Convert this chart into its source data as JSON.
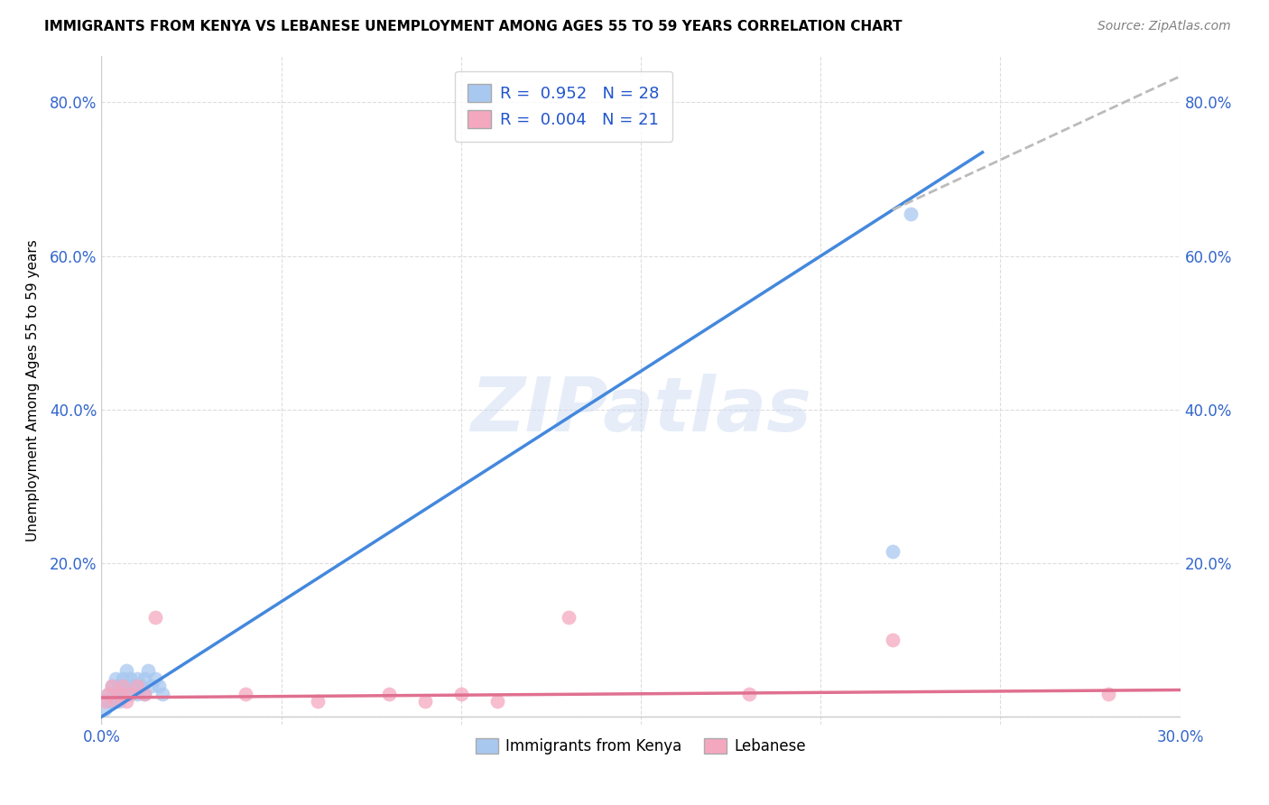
{
  "title": "IMMIGRANTS FROM KENYA VS LEBANESE UNEMPLOYMENT AMONG AGES 55 TO 59 YEARS CORRELATION CHART",
  "source": "Source: ZipAtlas.com",
  "ylabel": "Unemployment Among Ages 55 to 59 years",
  "xlim": [
    0.0,
    0.3
  ],
  "ylim": [
    -0.01,
    0.86
  ],
  "xticks": [
    0.0,
    0.05,
    0.1,
    0.15,
    0.2,
    0.25,
    0.3
  ],
  "yticks": [
    0.0,
    0.2,
    0.4,
    0.6,
    0.8
  ],
  "kenya_R": 0.952,
  "kenya_N": 28,
  "lebanese_R": 0.004,
  "lebanese_N": 21,
  "kenya_color": "#a8c8f0",
  "lebanese_color": "#f4a8c0",
  "kenya_line_color": "#4488dd",
  "lebanese_line_color": "#e07090",
  "dash_line_color": "#bbbbbb",
  "kenya_points_x": [
    0.001,
    0.002,
    0.002,
    0.003,
    0.003,
    0.004,
    0.004,
    0.005,
    0.005,
    0.006,
    0.006,
    0.007,
    0.007,
    0.008,
    0.008,
    0.009,
    0.01,
    0.01,
    0.011,
    0.012,
    0.012,
    0.013,
    0.014,
    0.015,
    0.016,
    0.017,
    0.22,
    0.225
  ],
  "kenya_points_y": [
    0.01,
    0.02,
    0.03,
    0.02,
    0.04,
    0.03,
    0.05,
    0.04,
    0.02,
    0.05,
    0.03,
    0.04,
    0.06,
    0.05,
    0.03,
    0.04,
    0.05,
    0.03,
    0.04,
    0.05,
    0.03,
    0.06,
    0.04,
    0.05,
    0.04,
    0.03,
    0.215,
    0.655
  ],
  "lebanese_points_x": [
    0.001,
    0.002,
    0.003,
    0.004,
    0.005,
    0.006,
    0.007,
    0.008,
    0.01,
    0.012,
    0.015,
    0.04,
    0.06,
    0.08,
    0.09,
    0.1,
    0.11,
    0.13,
    0.18,
    0.22,
    0.28
  ],
  "lebanese_points_y": [
    0.02,
    0.03,
    0.04,
    0.02,
    0.03,
    0.04,
    0.02,
    0.03,
    0.04,
    0.03,
    0.13,
    0.03,
    0.02,
    0.03,
    0.02,
    0.03,
    0.02,
    0.13,
    0.03,
    0.1,
    0.03
  ],
  "kenya_line_x": [
    0.0,
    0.245
  ],
  "kenya_line_y": [
    0.0,
    0.735
  ],
  "dash_line_x": [
    0.22,
    0.305
  ],
  "dash_line_y": [
    0.66,
    0.845
  ],
  "lebanese_line_x": [
    0.0,
    0.3
  ],
  "lebanese_line_y": [
    0.025,
    0.035
  ],
  "watermark": "ZIPatlas",
  "background_color": "#ffffff",
  "grid_color": "#dddddd",
  "marker_size": 130
}
